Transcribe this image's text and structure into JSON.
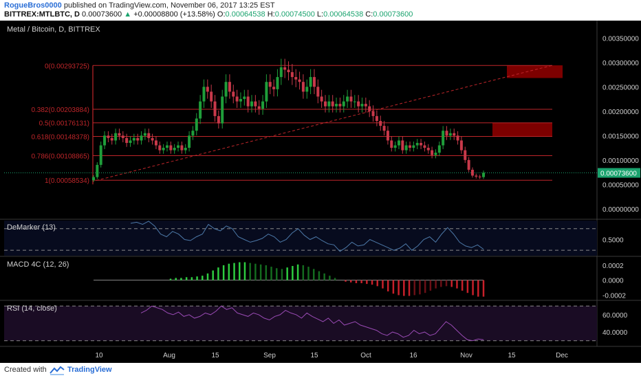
{
  "header": {
    "author": "RogueBros0000",
    "published": "published on TradingView.com, November 06, 2017 13:25 EST",
    "symbol": "BITTREX:MTLBTC, D",
    "last": "0.00073600",
    "change": "+0.00008800 (+13.58%)",
    "o_label": "O:",
    "o": "0.00064538",
    "h_label": "H:",
    "h": "0.00074500",
    "l_label": "L:",
    "l": "0.00064538",
    "c_label": "C:",
    "c": "0.00073600"
  },
  "footer": {
    "created": "Created with",
    "brand": "TradingView"
  },
  "colors": {
    "bg": "#000000",
    "up": "#1f9e3a",
    "down": "#c8394a",
    "fib": "#c0262a",
    "zone": "#8b0000",
    "demarker": "#4d79a8",
    "rsi": "#9a4bb5",
    "price_tag": "#1aa36e"
  },
  "chart_data": [
    {
      "type": "candlestick",
      "title": "Metal / Bitcoin, D, BITTREX",
      "ylim": [
        -0.0002,
        0.0038
      ],
      "yticks": [
        "0.00350000",
        "0.00300000",
        "0.00250000",
        "0.00200000",
        "0.00150000",
        "0.00100000",
        "0.00050000",
        "0.00000000"
      ],
      "ytick_values": [
        0.0035,
        0.003,
        0.0025,
        0.002,
        0.0015,
        0.001,
        0.0005,
        0.0
      ],
      "x_tick_labels": [
        "10",
        "Aug",
        "15",
        "Sep",
        "15",
        "Oct",
        "16",
        "Nov",
        "15",
        "Dec"
      ],
      "last_price_label": "0.00073600",
      "last_price": 0.000736,
      "fib_levels": [
        {
          "label": "0(0.00293725)",
          "value": 0.00293725
        },
        {
          "label": "0.382(0.00203884)",
          "value": 0.00203884
        },
        {
          "label": "0.5(0.00176131)",
          "value": 0.00176131
        },
        {
          "label": "0.618(0.00148378)",
          "value": 0.00148378
        },
        {
          "label": "0.786(0.00108865)",
          "value": 0.00108865
        },
        {
          "label": "1(0.00058534)",
          "value": 0.00058534
        }
      ],
      "resistance_zones": [
        {
          "low": 0.00268,
          "high": 0.00294
        },
        {
          "low": 0.00148,
          "high": 0.00176
        }
      ],
      "close_series": [
        0.00065,
        0.0009,
        0.0013,
        0.0015,
        0.00145,
        0.0014,
        0.00155,
        0.0015,
        0.00145,
        0.00135,
        0.0014,
        0.00145,
        0.0014,
        0.0015,
        0.00155,
        0.00145,
        0.0014,
        0.0013,
        0.0012,
        0.00125,
        0.0013,
        0.0012,
        0.00125,
        0.0013,
        0.0012,
        0.00125,
        0.0015,
        0.0016,
        0.00185,
        0.0022,
        0.0025,
        0.0024,
        0.0022,
        0.0019,
        0.00175,
        0.0023,
        0.0026,
        0.0024,
        0.0023,
        0.0022,
        0.00225,
        0.0023,
        0.0021,
        0.0022,
        0.0021,
        0.00205,
        0.0022,
        0.0026,
        0.0025,
        0.00245,
        0.0027,
        0.0029,
        0.00285,
        0.0028,
        0.0027,
        0.00265,
        0.0026,
        0.0024,
        0.0025,
        0.0027,
        0.0025,
        0.0023,
        0.0022,
        0.0021,
        0.0022,
        0.0021,
        0.00215,
        0.0021,
        0.0022,
        0.0023,
        0.0022,
        0.0022,
        0.0021,
        0.00215,
        0.0021,
        0.002,
        0.0019,
        0.0018,
        0.0017,
        0.0016,
        0.0014,
        0.00125,
        0.0013,
        0.0014,
        0.0012,
        0.0013,
        0.00125,
        0.0013,
        0.00135,
        0.0013,
        0.00125,
        0.0012,
        0.0011,
        0.00115,
        0.0013,
        0.0016,
        0.0015,
        0.00155,
        0.0015,
        0.0014,
        0.0012,
        0.001,
        0.0008,
        0.00068,
        0.00066,
        0.00065,
        0.00074
      ]
    },
    {
      "type": "line",
      "title": "DeMarker (13)",
      "ylim": [
        0.2,
        0.85
      ],
      "yticks": [
        "0.5000"
      ],
      "ytick_values": [
        0.5
      ],
      "dashed_levels": [
        0.7,
        0.3
      ],
      "values": [
        0.8,
        0.82,
        0.78,
        0.84,
        0.75,
        0.6,
        0.55,
        0.65,
        0.6,
        0.5,
        0.48,
        0.55,
        0.6,
        0.78,
        0.7,
        0.66,
        0.75,
        0.7,
        0.55,
        0.5,
        0.45,
        0.48,
        0.52,
        0.6,
        0.55,
        0.45,
        0.5,
        0.62,
        0.7,
        0.58,
        0.5,
        0.55,
        0.48,
        0.42,
        0.4,
        0.28,
        0.35,
        0.45,
        0.38,
        0.4,
        0.5,
        0.45,
        0.4,
        0.35,
        0.3,
        0.34,
        0.42,
        0.3,
        0.38,
        0.5,
        0.55,
        0.45,
        0.6,
        0.72,
        0.6,
        0.45,
        0.38,
        0.35,
        0.4,
        0.32
      ]
    },
    {
      "type": "bar",
      "title": "MACD 4C (12, 26)",
      "ylim": [
        -0.00026,
        0.0003
      ],
      "yticks": [
        "0.0002",
        "0.0000",
        "-0.0002"
      ],
      "ytick_values": [
        0.0002,
        0.0,
        -0.0002
      ],
      "values": [
        2e-05,
        3e-05,
        3e-05,
        4e-05,
        4e-05,
        5e-05,
        6e-05,
        9e-05,
        0.00013,
        0.00017,
        0.0002,
        0.00022,
        0.00023,
        0.00024,
        0.00024,
        0.00023,
        0.00022,
        0.00021,
        0.0002,
        0.00018,
        0.00016,
        0.00015,
        0.00017,
        0.00019,
        0.00021,
        0.0002,
        0.00018,
        0.00015,
        0.00012,
        9e-05,
        6e-05,
        3e-05,
        0.0,
        -2e-05,
        -3e-05,
        -4e-05,
        -4e-05,
        -5e-05,
        -6e-05,
        -8e-05,
        -0.00011,
        -0.00015,
        -0.00018,
        -0.0002,
        -0.00021,
        -0.00021,
        -0.0002,
        -0.00019,
        -0.00017,
        -0.00014,
        -0.00011,
        -9e-05,
        -8e-05,
        -9e-05,
        -0.00011,
        -0.00014,
        -0.00017,
        -0.0002,
        -0.00022,
        -0.00022
      ]
    },
    {
      "type": "line",
      "title": "RSI (14, close)",
      "ylim": [
        25,
        75
      ],
      "yticks": [
        "60.0000",
        "40.0000"
      ],
      "ytick_values": [
        60,
        40
      ],
      "dashed_levels": [
        70,
        30
      ],
      "values": [
        62,
        65,
        70,
        68,
        66,
        62,
        60,
        63,
        58,
        60,
        56,
        58,
        62,
        60,
        64,
        70,
        66,
        68,
        62,
        60,
        58,
        62,
        60,
        56,
        54,
        58,
        60,
        65,
        62,
        60,
        56,
        62,
        58,
        55,
        52,
        56,
        50,
        54,
        48,
        50,
        52,
        48,
        46,
        44,
        42,
        38,
        36,
        40,
        38,
        34,
        36,
        42,
        38,
        40,
        36,
        38,
        45,
        52,
        48,
        42,
        36,
        31,
        30,
        32,
        31
      ]
    }
  ]
}
